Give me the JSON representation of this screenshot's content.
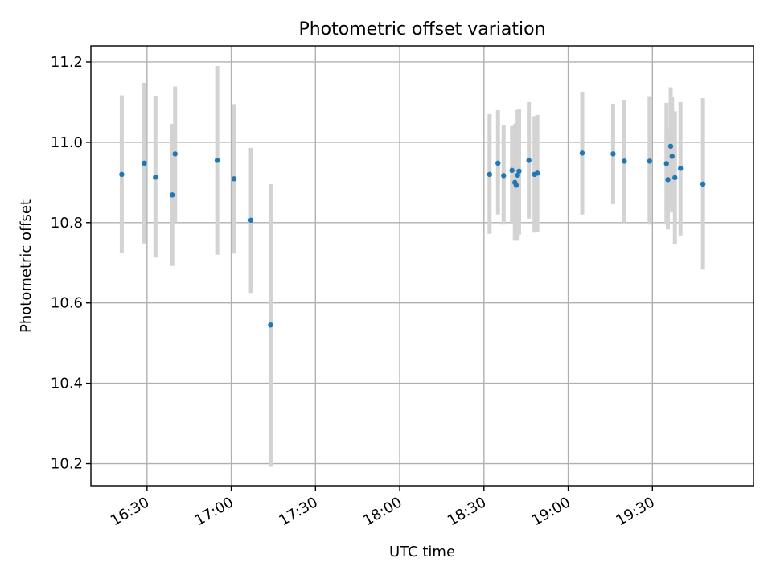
{
  "chart_data": {
    "type": "scatter",
    "title": "Photometric offset variation",
    "xlabel": "UTC time",
    "ylabel": "Photometric offset",
    "xlim": [
      "16:10",
      "20:06"
    ],
    "ylim": [
      10.145,
      11.24
    ],
    "x_ticks": [
      "16:30",
      "17:00",
      "17:30",
      "18:00",
      "18:30",
      "19:00",
      "19:30"
    ],
    "y_ticks": [
      "10.2",
      "10.4",
      "10.6",
      "10.8",
      "11.0",
      "11.2"
    ],
    "grid": true,
    "colors": {
      "marker": "#1f77b4",
      "errorbar": "#d3d3d3"
    },
    "points": [
      {
        "x": "16:21",
        "y": 10.92,
        "ylow": 10.725,
        "yhigh": 11.117
      },
      {
        "x": "16:29",
        "y": 10.948,
        "ylow": 10.748,
        "yhigh": 11.148
      },
      {
        "x": "16:33",
        "y": 10.913,
        "ylow": 10.713,
        "yhigh": 11.115
      },
      {
        "x": "16:39",
        "y": 10.869,
        "ylow": 10.692,
        "yhigh": 11.046
      },
      {
        "x": "16:40",
        "y": 10.971,
        "ylow": 10.8,
        "yhigh": 11.139
      },
      {
        "x": "16:55",
        "y": 10.955,
        "ylow": 10.72,
        "yhigh": 11.19
      },
      {
        "x": "17:01",
        "y": 10.909,
        "ylow": 10.723,
        "yhigh": 11.095
      },
      {
        "x": "17:07",
        "y": 10.806,
        "ylow": 10.625,
        "yhigh": 10.986
      },
      {
        "x": "17:14",
        "y": 10.545,
        "ylow": 10.192,
        "yhigh": 10.896
      },
      {
        "x": "18:32",
        "y": 10.92,
        "ylow": 10.772,
        "yhigh": 11.07
      },
      {
        "x": "18:35",
        "y": 10.948,
        "ylow": 10.82,
        "yhigh": 11.08
      },
      {
        "x": "18:37",
        "y": 10.917,
        "ylow": 10.795,
        "yhigh": 11.043
      },
      {
        "x": "18:40",
        "y": 10.93,
        "ylow": 10.8,
        "yhigh": 11.04
      },
      {
        "x": "18:41",
        "y": 10.9,
        "ylow": 10.755,
        "yhigh": 11.045
      },
      {
        "x": "18:41.5",
        "y": 10.893,
        "ylow": 10.755,
        "yhigh": 11.048
      },
      {
        "x": "18:42",
        "y": 10.918,
        "ylow": 10.755,
        "yhigh": 11.08
      },
      {
        "x": "18:42.5",
        "y": 10.928,
        "ylow": 10.77,
        "yhigh": 11.083
      },
      {
        "x": "18:46",
        "y": 10.955,
        "ylow": 10.81,
        "yhigh": 11.1
      },
      {
        "x": "18:48",
        "y": 10.92,
        "ylow": 10.775,
        "yhigh": 11.065
      },
      {
        "x": "18:49",
        "y": 10.923,
        "ylow": 10.777,
        "yhigh": 11.068
      },
      {
        "x": "19:05",
        "y": 10.973,
        "ylow": 10.82,
        "yhigh": 11.126
      },
      {
        "x": "19:16",
        "y": 10.971,
        "ylow": 10.846,
        "yhigh": 11.096
      },
      {
        "x": "19:20",
        "y": 10.953,
        "ylow": 10.8,
        "yhigh": 11.106
      },
      {
        "x": "19:29",
        "y": 10.953,
        "ylow": 10.795,
        "yhigh": 11.113
      },
      {
        "x": "19:35",
        "y": 10.947,
        "ylow": 10.795,
        "yhigh": 11.098
      },
      {
        "x": "19:35.5",
        "y": 10.907,
        "ylow": 10.783,
        "yhigh": 11.031
      },
      {
        "x": "19:36.5",
        "y": 10.99,
        "ylow": 10.84,
        "yhigh": 11.137
      },
      {
        "x": "19:37",
        "y": 10.965,
        "ylow": 10.825,
        "yhigh": 11.112
      },
      {
        "x": "19:38",
        "y": 10.912,
        "ylow": 10.747,
        "yhigh": 11.077
      },
      {
        "x": "19:40",
        "y": 10.935,
        "ylow": 10.768,
        "yhigh": 11.1
      },
      {
        "x": "19:48",
        "y": 10.896,
        "ylow": 10.683,
        "yhigh": 11.11
      }
    ]
  }
}
